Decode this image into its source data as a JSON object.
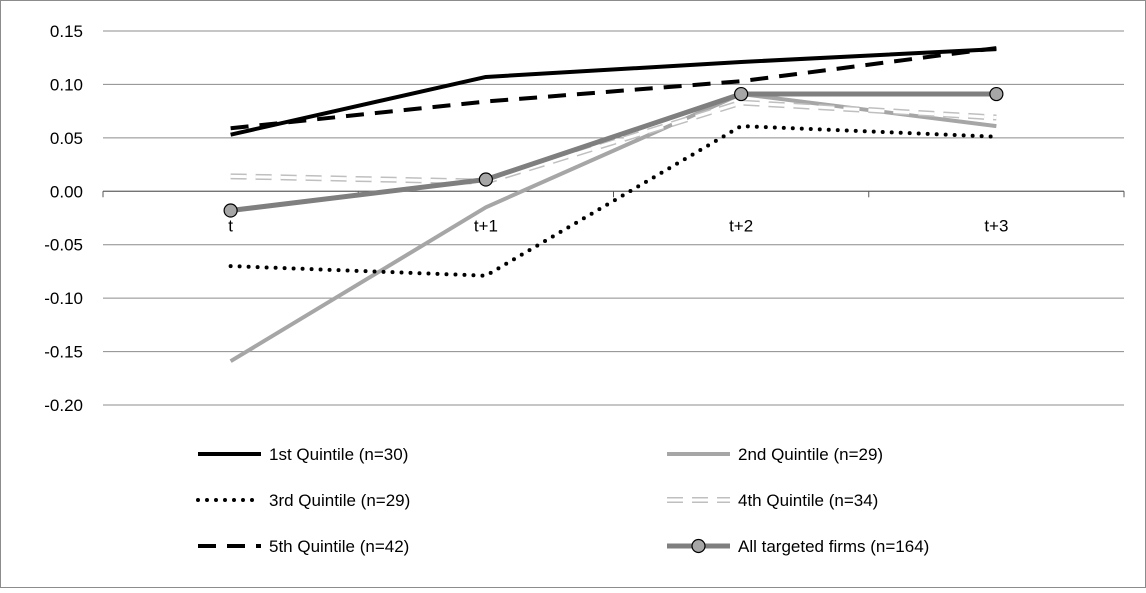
{
  "chart_data": {
    "type": "line",
    "categories": [
      "t",
      "t+1",
      "t+2",
      "t+3"
    ],
    "ylim": [
      -0.2,
      0.15
    ],
    "yticks": [
      "0.15",
      "0.10",
      "0.05",
      "0.00",
      "-0.05",
      "-0.10",
      "-0.15",
      "-0.20"
    ],
    "ytick_values": [
      0.15,
      0.1,
      0.05,
      0.0,
      -0.05,
      -0.1,
      -0.15,
      -0.2
    ],
    "grid": true,
    "legend_position": "bottom",
    "series": [
      {
        "name": "1st Quintile (n=30)",
        "values": [
          0.053,
          0.107,
          0.121,
          0.133
        ],
        "color": "#000000",
        "style": "solid"
      },
      {
        "name": "2nd Quintile (n=29)",
        "values": [
          -0.159,
          -0.015,
          0.091,
          0.061
        ],
        "color": "#a6a6a6",
        "style": "solid"
      },
      {
        "name": "3rd Quintile (n=29)",
        "values": [
          -0.07,
          -0.079,
          0.061,
          0.051
        ],
        "color": "#000000",
        "style": "dotted"
      },
      {
        "name": "4th Quintile (n=34)",
        "values": [
          0.014,
          0.009,
          0.083,
          0.069
        ],
        "color": "#bfbfbf",
        "style": "hollow-dash"
      },
      {
        "name": "5th Quintile (n=42)",
        "values": [
          0.059,
          0.084,
          0.103,
          0.134
        ],
        "color": "#000000",
        "style": "dashed"
      },
      {
        "name": "All targeted firms (n=164)",
        "values": [
          -0.018,
          0.011,
          0.091,
          0.091
        ],
        "color": "#7f7f7f",
        "style": "solid-markers"
      }
    ]
  }
}
